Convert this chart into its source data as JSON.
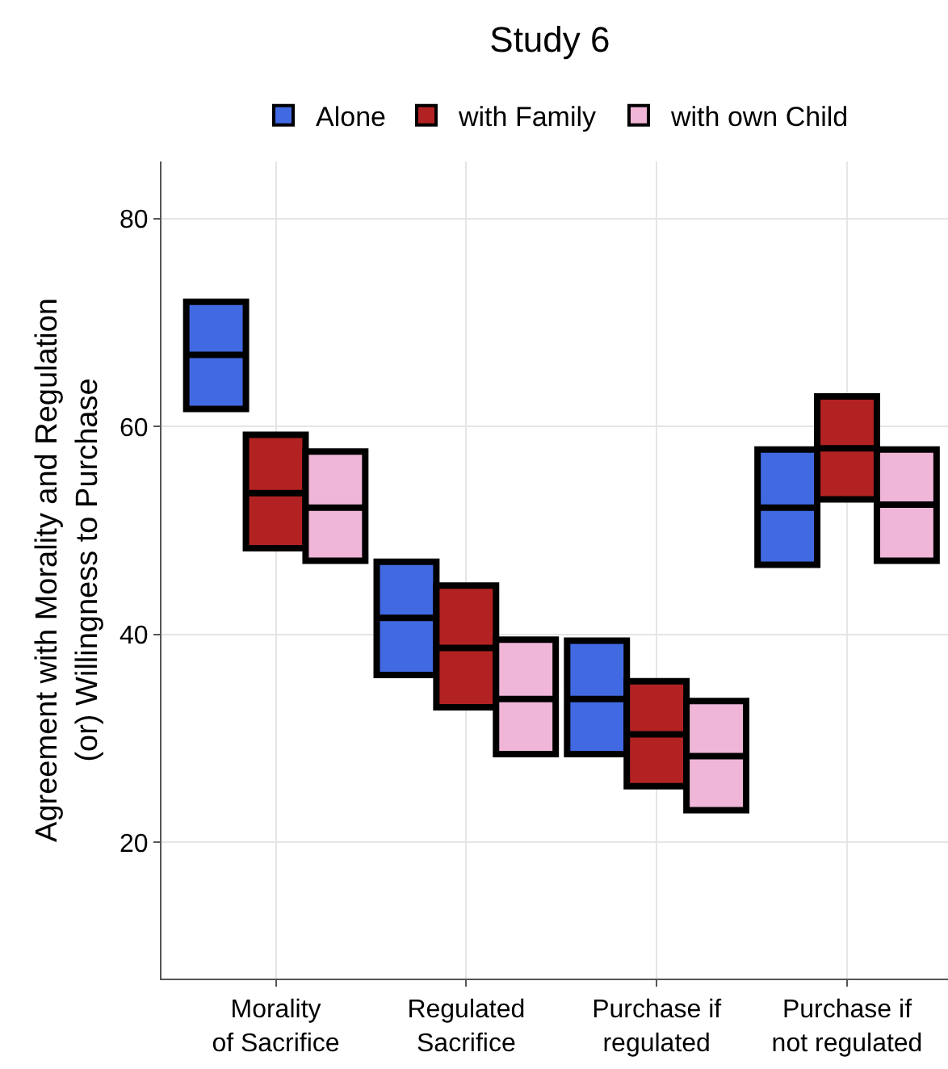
{
  "chart_data": {
    "type": "box",
    "title": "Study 6",
    "ylabel": "Agreement with Morality and Regulation\n(or) Willingness to Purchase",
    "categories": [
      "Morality\nof Sacrifice",
      "Regulated\nSacrifice",
      "Purchase if\nregulated",
      "Purchase if\nnot regulated"
    ],
    "series": [
      {
        "name": "Alone",
        "color": "#4169e1",
        "boxes": [
          {
            "low": 61.7,
            "q1": 61.7,
            "median": 66.9,
            "q3": 72.0,
            "high": 72.0
          },
          {
            "low": 36.1,
            "q1": 36.1,
            "median": 41.6,
            "q3": 47.0,
            "high": 47.0
          },
          {
            "low": 28.5,
            "q1": 28.5,
            "median": 33.8,
            "q3": 39.4,
            "high": 39.4
          },
          {
            "low": 46.7,
            "q1": 46.7,
            "median": 52.2,
            "q3": 57.8,
            "high": 57.8
          }
        ]
      },
      {
        "name": "with Family",
        "color": "#b22222",
        "boxes": [
          {
            "low": 48.3,
            "q1": 48.3,
            "median": 53.6,
            "q3": 59.2,
            "high": 59.2
          },
          {
            "low": 33.0,
            "q1": 33.0,
            "median": 38.7,
            "q3": 44.7,
            "high": 44.7
          },
          {
            "low": 25.4,
            "q1": 25.4,
            "median": 30.4,
            "q3": 35.5,
            "high": 35.5
          },
          {
            "low": 53.0,
            "q1": 53.0,
            "median": 57.9,
            "q3": 62.9,
            "high": 62.9
          }
        ]
      },
      {
        "name": "with own Child",
        "color": "#f0b6d8",
        "boxes": [
          {
            "low": 47.1,
            "q1": 47.1,
            "median": 52.2,
            "q3": 57.6,
            "high": 57.6
          },
          {
            "low": 28.5,
            "q1": 28.5,
            "median": 33.8,
            "q3": 39.5,
            "high": 39.5
          },
          {
            "low": 23.1,
            "q1": 23.1,
            "median": 28.3,
            "q3": 33.6,
            "high": 33.6
          },
          {
            "low": 47.1,
            "q1": 47.1,
            "median": 52.5,
            "q3": 57.8,
            "high": 57.8
          }
        ]
      }
    ],
    "ylim": [
      6.9,
      85.5
    ],
    "yticks": [
      20,
      40,
      60,
      80
    ],
    "grid": true,
    "legend": "top"
  }
}
